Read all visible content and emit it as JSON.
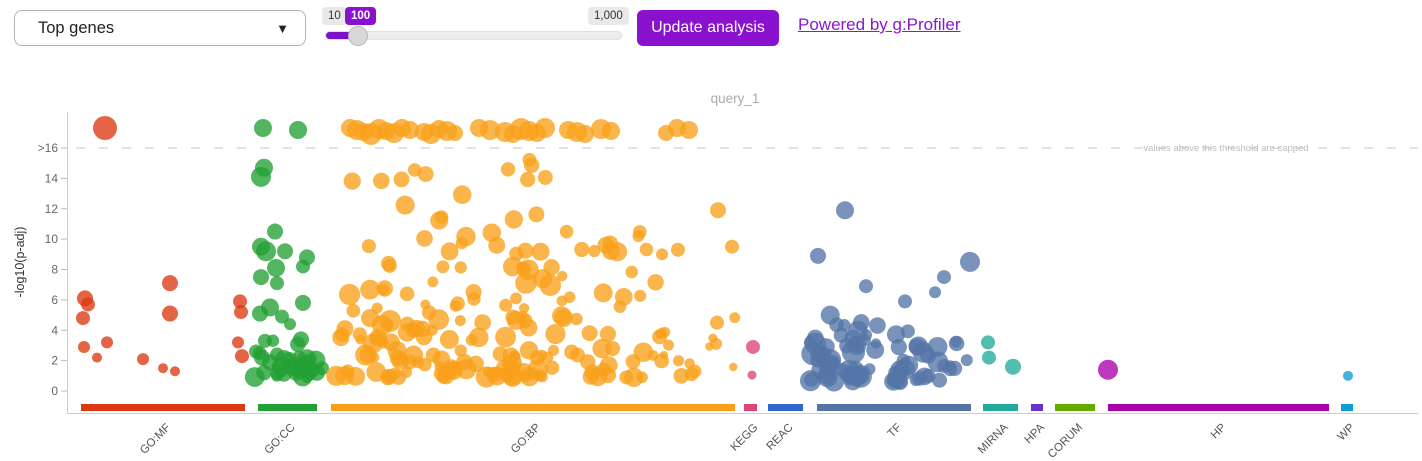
{
  "toolbar": {
    "dataset_select": {
      "value": "Top genes"
    },
    "slider": {
      "min_label": "10",
      "value_label": "100",
      "max_label": "1,000"
    },
    "update_button_label": "Update analysis",
    "powered_by_label": "Powered by g:Profiler"
  },
  "colors": {
    "accent_purple": "#8a11ce",
    "link_purple": "#8a18cc",
    "axis_gray": "#cccccc",
    "tick_text": "#666666",
    "title_gray": "#aaaaaa"
  },
  "chart_data": {
    "type": "scatter",
    "title": "query_1",
    "ylabel": "-log10(p-adj)",
    "xlabel": "",
    "grid": false,
    "legend_position": "bottom-axis",
    "ylim": [
      0,
      17.8
    ],
    "cap_threshold": 16,
    "cap_note": "values above this threshold are capped",
    "yticks": [
      {
        "label": "0",
        "value": 0
      },
      {
        "label": "2",
        "value": 2
      },
      {
        "label": "4",
        "value": 4
      },
      {
        "label": "6",
        "value": 6
      },
      {
        "label": "8",
        "value": 8
      },
      {
        "label": "10",
        "value": 10
      },
      {
        "label": "12",
        "value": 12
      },
      {
        "label": "14",
        "value": 14
      },
      {
        "label": ">16",
        "value": 16
      }
    ],
    "sources": [
      {
        "name": "GO:MF",
        "color": "#dc3912",
        "bar": [
          81,
          245
        ],
        "points": [
          [
            85,
            6.1,
            8
          ],
          [
            88,
            5.7,
            7
          ],
          [
            83,
            4.8,
            7
          ],
          [
            84,
            2.9,
            6
          ],
          [
            97,
            2.2,
            5
          ],
          [
            107,
            3.2,
            6
          ],
          [
            143,
            2.1,
            6
          ],
          [
            163,
            1.5,
            5
          ],
          [
            170,
            7.1,
            8
          ],
          [
            170,
            5.1,
            8
          ],
          [
            175,
            1.3,
            5
          ],
          [
            238,
            3.2,
            6
          ],
          [
            240,
            5.9,
            7
          ],
          [
            241,
            5.2,
            7
          ],
          [
            242,
            2.3,
            7
          ],
          [
            496,
            1.25,
            5
          ]
        ],
        "capped": [
          [
            105,
            12
          ]
        ],
        "clusters": []
      },
      {
        "name": "GO:CC",
        "color": "#23a033",
        "bar": [
          258,
          317
        ],
        "points": [
          [
            264,
            14.7,
            9
          ],
          [
            261,
            14.1,
            10
          ],
          [
            275,
            10.5,
            8
          ],
          [
            261,
            9.5,
            9
          ],
          [
            266,
            9.2,
            10
          ],
          [
            285,
            9.2,
            8
          ],
          [
            307,
            8.8,
            8
          ],
          [
            303,
            8.2,
            7
          ],
          [
            276,
            8.1,
            9
          ],
          [
            261,
            7.5,
            8
          ],
          [
            277,
            7.1,
            7
          ],
          [
            270,
            5.5,
            9
          ],
          [
            303,
            5.8,
            8
          ],
          [
            260,
            5.1,
            8
          ],
          [
            282,
            4.9,
            7
          ],
          [
            290,
            4.4,
            6
          ],
          [
            301,
            3.4,
            8
          ],
          [
            265,
            3.3,
            7
          ],
          [
            256,
            2.6,
            7
          ],
          [
            262,
            2.2,
            8
          ],
          [
            270,
            1.9,
            8
          ],
          [
            277,
            2.4,
            7
          ],
          [
            284,
            2.1,
            9
          ],
          [
            290,
            1.6,
            8
          ],
          [
            296,
            1.2,
            8
          ],
          [
            302,
            1.5,
            9
          ],
          [
            308,
            1.9,
            8
          ],
          [
            313,
            1.4,
            7
          ],
          [
            317,
            1.2,
            8
          ],
          [
            322,
            1.5,
            7
          ]
        ],
        "capped": [
          [
            263,
            9
          ],
          [
            298,
            9
          ]
        ],
        "clusters": [
          {
            "x": [
              254,
              318
            ],
            "n": 22,
            "v": [
              0.9,
              3.4
            ],
            "r": [
              5,
              10
            ],
            "seed": 7
          }
        ]
      },
      {
        "name": "GO:BP",
        "color": "#f9a01b",
        "bar": [
          331,
          735
        ],
        "points": [
          [
            718,
            11.9,
            8
          ],
          [
            732,
            9.5,
            7
          ],
          [
            717,
            4.5,
            7
          ],
          [
            716,
            3.1,
            6
          ],
          [
            678,
            9.3,
            7
          ],
          [
            662,
            9.0,
            6
          ]
        ],
        "capped": [
          [
            350,
            9
          ],
          [
            357,
            10
          ],
          [
            364,
            9
          ],
          [
            371,
            11
          ],
          [
            379,
            10
          ],
          [
            386,
            9
          ],
          [
            394,
            10
          ],
          [
            402,
            9
          ],
          [
            410,
            9
          ],
          [
            424,
            9
          ],
          [
            431,
            10
          ],
          [
            439,
            9
          ],
          [
            447,
            10
          ],
          [
            455,
            8
          ],
          [
            479,
            9
          ],
          [
            490,
            10
          ],
          [
            505,
            10
          ],
          [
            513,
            9
          ],
          [
            521,
            11
          ],
          [
            529,
            10
          ],
          [
            537,
            9
          ],
          [
            545,
            10
          ],
          [
            568,
            9
          ],
          [
            577,
            10
          ],
          [
            585,
            9
          ],
          [
            601,
            10
          ],
          [
            611,
            9
          ],
          [
            666,
            8
          ],
          [
            677,
            9
          ],
          [
            689,
            9
          ]
        ],
        "clusters": [
          {
            "x": [
              334,
              420
            ],
            "n": 48,
            "v": [
              0.9,
              8.6
            ],
            "r": [
              5,
              11
            ],
            "seed": 11
          },
          {
            "x": [
              420,
              510
            ],
            "n": 44,
            "v": [
              0.9,
              8.6
            ],
            "r": [
              5,
              11
            ],
            "seed": 12
          },
          {
            "x": [
              505,
              570
            ],
            "n": 42,
            "v": [
              0.9,
              9.2
            ],
            "r": [
              5,
              11
            ],
            "seed": 13
          },
          {
            "x": [
              570,
              665
            ],
            "n": 30,
            "v": [
              0.9,
              9.0
            ],
            "r": [
              5,
              10
            ],
            "seed": 14
          },
          {
            "x": [
              660,
              738
            ],
            "n": 12,
            "v": [
              0.9,
              6.0
            ],
            "r": [
              4,
              8
            ],
            "seed": 15
          },
          {
            "x": [
              336,
              660
            ],
            "n": 26,
            "v": [
              9.0,
              13.6
            ],
            "r": [
              6,
              10
            ],
            "seed": 16
          },
          {
            "x": [
              334,
              620
            ],
            "n": 10,
            "v": [
              13.8,
              15.9
            ],
            "r": [
              6,
              9
            ],
            "seed": 17
          }
        ]
      },
      {
        "name": "KEGG",
        "color": "#dd4477",
        "bar": [
          744,
          757
        ],
        "points": [
          [
            753,
            2.9,
            7
          ],
          [
            752,
            1.05,
            4.5
          ]
        ],
        "capped": [],
        "clusters": []
      },
      {
        "name": "REAC",
        "color": "#3366cc",
        "bar": [
          768,
          803
        ],
        "points": [],
        "capped": [],
        "clusters": []
      },
      {
        "name": "TF",
        "color": "#5574a6",
        "bar": [
          817,
          971
        ],
        "points": [
          [
            845,
            11.9,
            9
          ],
          [
            818,
            8.9,
            8
          ],
          [
            970,
            8.5,
            10
          ],
          [
            944,
            7.5,
            7
          ],
          [
            866,
            6.9,
            7
          ],
          [
            935,
            6.5,
            6
          ],
          [
            905,
            5.9,
            7
          ]
        ],
        "capped": [],
        "clusters": [
          {
            "x": [
              810,
              862
            ],
            "n": 36,
            "v": [
              0.6,
              5.6
            ],
            "r": [
              6,
              12
            ],
            "seed": 21
          },
          {
            "x": [
              893,
              950
            ],
            "n": 26,
            "v": [
              0.6,
              5.2
            ],
            "r": [
              6,
              11
            ],
            "seed": 22
          },
          {
            "x": [
              858,
              896
            ],
            "n": 9,
            "v": [
              0.9,
              4.6
            ],
            "r": [
              5,
              9
            ],
            "seed": 23
          },
          {
            "x": [
              948,
              972
            ],
            "n": 6,
            "v": [
              0.8,
              3.4
            ],
            "r": [
              5,
              8
            ],
            "seed": 24
          }
        ]
      },
      {
        "name": "MIRNA",
        "color": "#22aa99",
        "bar": [
          983,
          1018
        ],
        "points": [
          [
            988,
            3.2,
            7
          ],
          [
            989,
            2.2,
            7
          ],
          [
            1013,
            1.6,
            8
          ]
        ],
        "capped": [],
        "clusters": []
      },
      {
        "name": "HPA",
        "color": "#6633cc",
        "bar": [
          1031,
          1043
        ],
        "points": [],
        "capped": [],
        "clusters": []
      },
      {
        "name": "CORUM",
        "color": "#66aa00",
        "bar": [
          1055,
          1095
        ],
        "points": [],
        "capped": [],
        "clusters": []
      },
      {
        "name": "HP",
        "color": "#aa00aa",
        "bar": [
          1108,
          1329
        ],
        "points": [
          [
            1108,
            1.4,
            10
          ]
        ],
        "capped": [],
        "clusters": []
      },
      {
        "name": "WP",
        "color": "#0d9fd2",
        "bar": [
          1341,
          1353
        ],
        "points": [
          [
            1348,
            1.0,
            5
          ]
        ],
        "capped": [],
        "clusters": []
      }
    ]
  }
}
